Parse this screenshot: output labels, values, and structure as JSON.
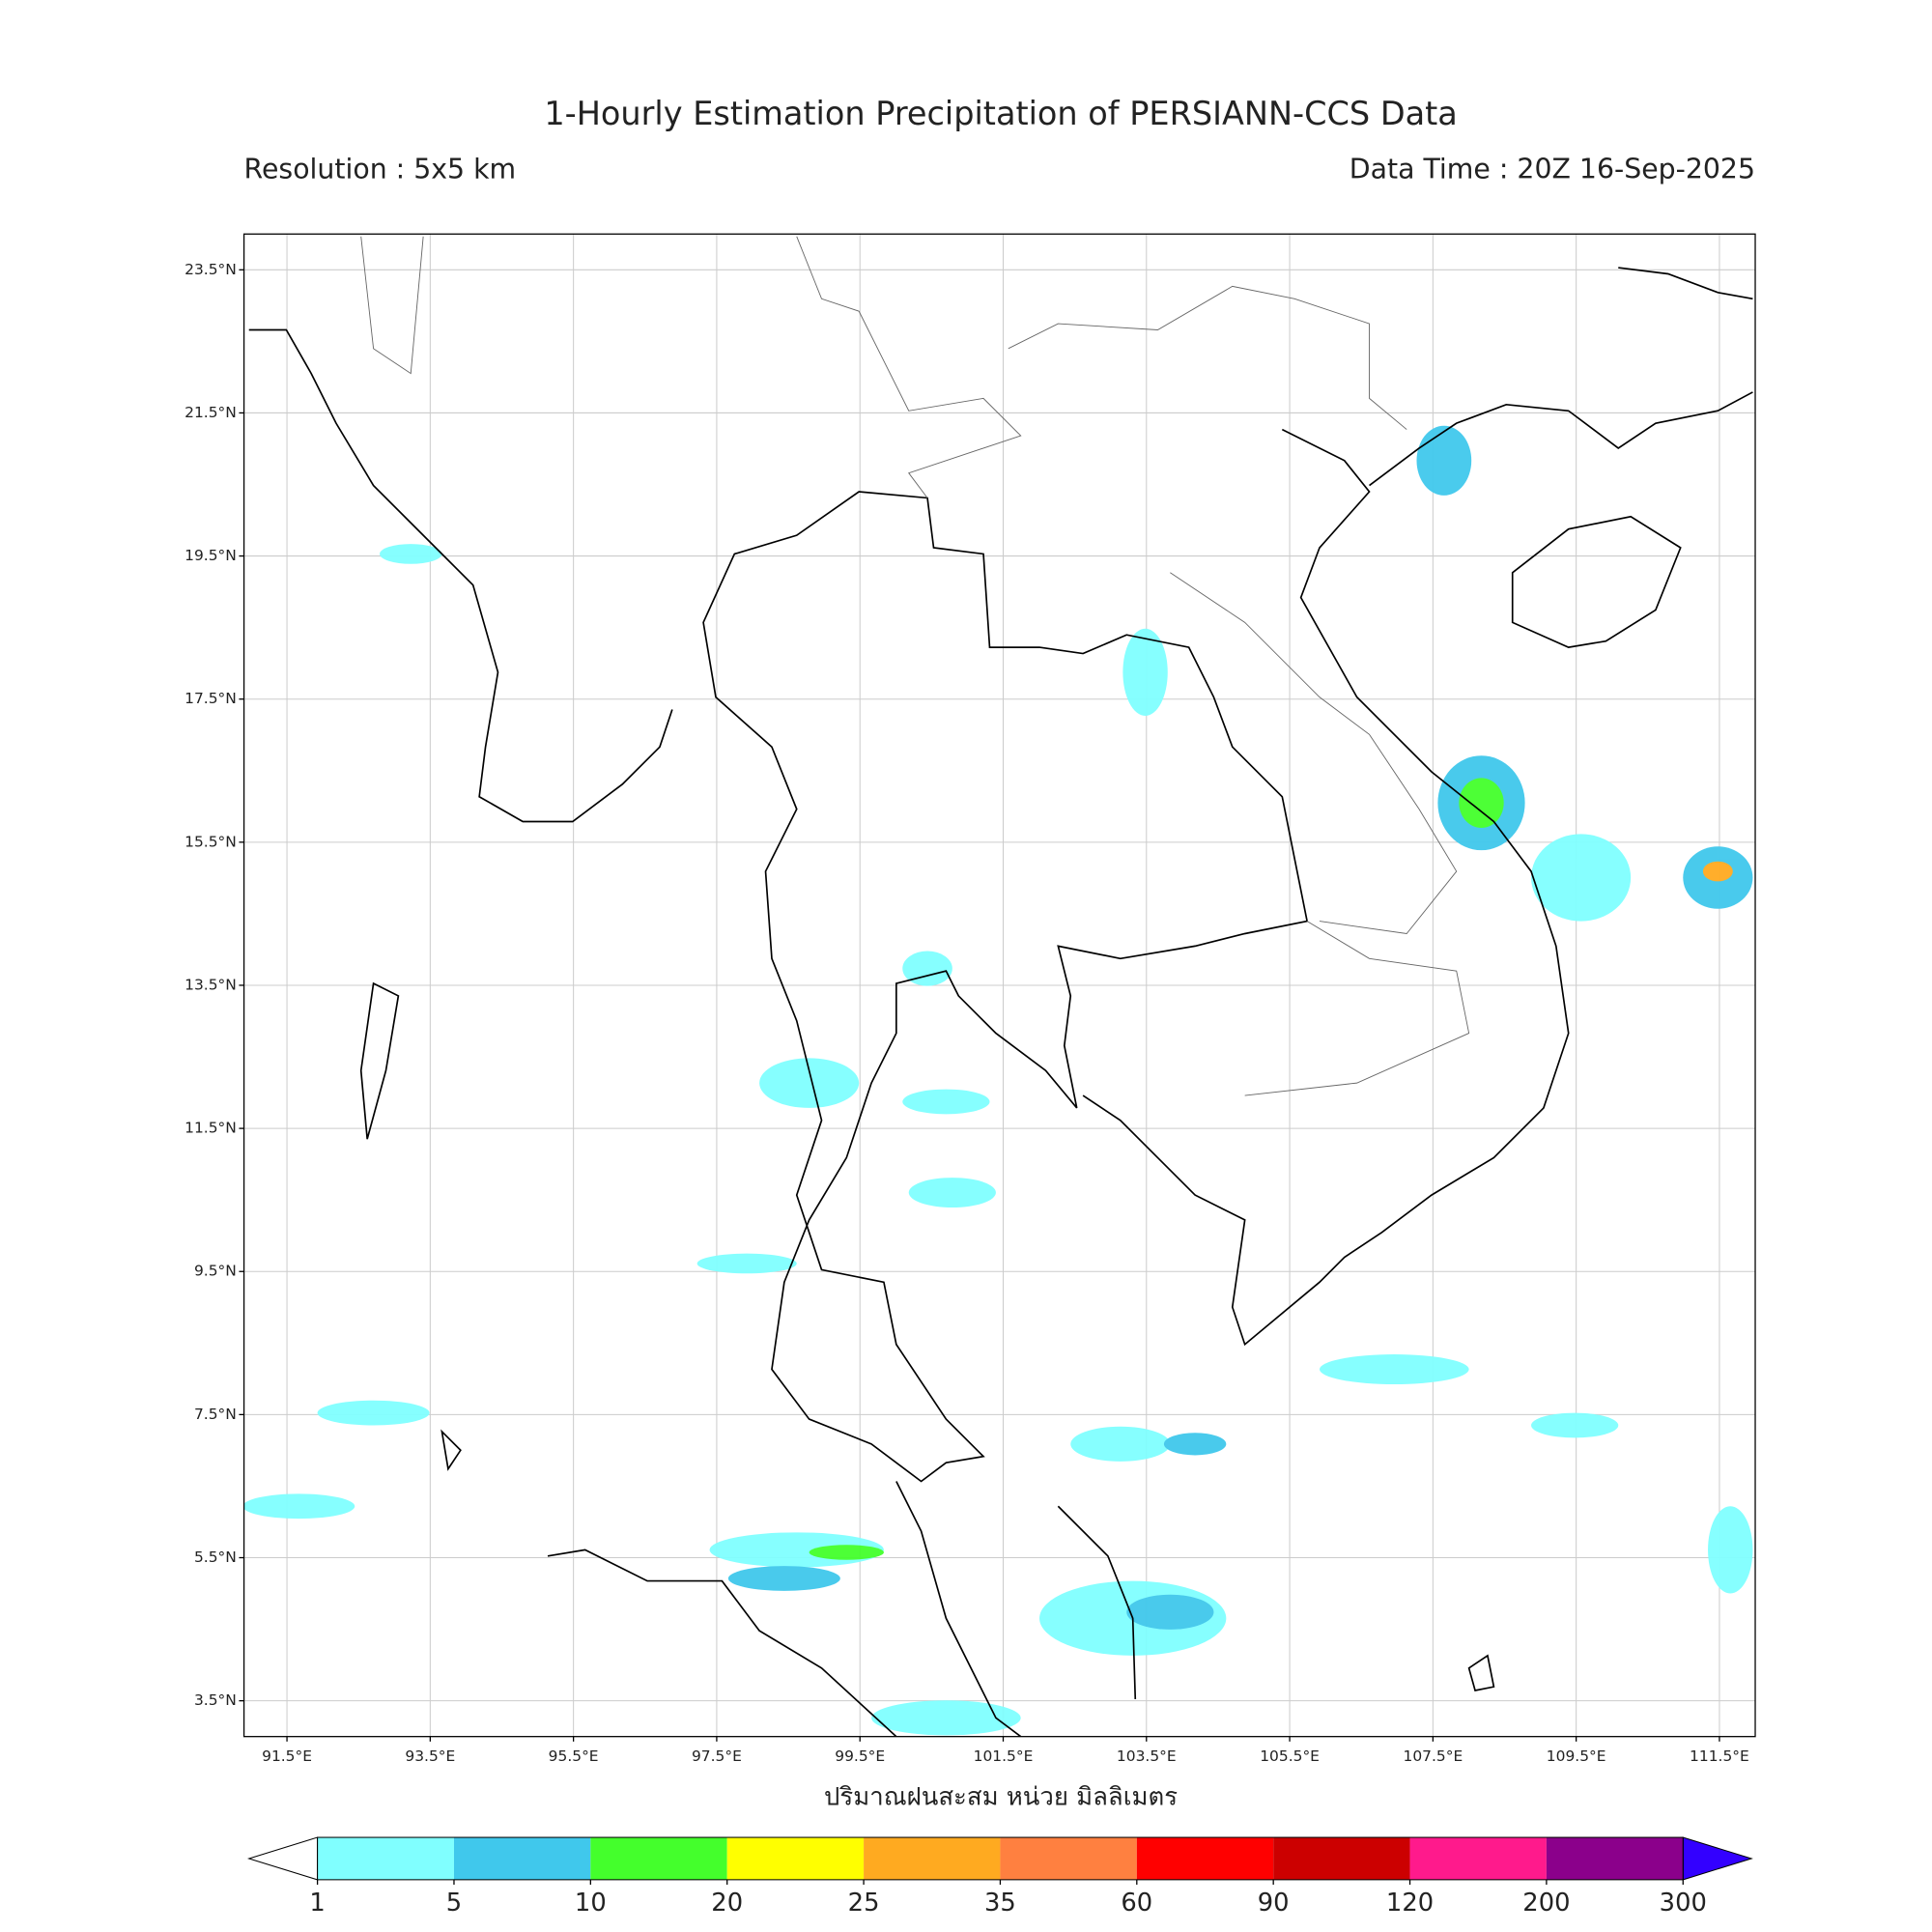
{
  "title": "1-Hourly Estimation Precipitation of PERSIANN-CCS Data",
  "subtitle_left": "Resolution : 5x5 km",
  "subtitle_right": "Data Time : 20Z 16-Sep-2025",
  "map": {
    "xlim": [
      90.9,
      112.0
    ],
    "ylim": [
      3.0,
      24.0
    ],
    "xticks": [
      {
        "value": 91.5,
        "label": "91.5°E"
      },
      {
        "value": 93.5,
        "label": "93.5°E"
      },
      {
        "value": 95.5,
        "label": "95.5°E"
      },
      {
        "value": 97.5,
        "label": "97.5°E"
      },
      {
        "value": 99.5,
        "label": "99.5°E"
      },
      {
        "value": 101.5,
        "label": "101.5°E"
      },
      {
        "value": 103.5,
        "label": "103.5°E"
      },
      {
        "value": 105.5,
        "label": "105.5°E"
      },
      {
        "value": 107.5,
        "label": "107.5°E"
      },
      {
        "value": 109.5,
        "label": "109.5°E"
      },
      {
        "value": 111.5,
        "label": "111.5°E"
      }
    ],
    "yticks": [
      {
        "value": 3.5,
        "label": "3.5°N"
      },
      {
        "value": 5.5,
        "label": "5.5°N"
      },
      {
        "value": 7.5,
        "label": "7.5°N"
      },
      {
        "value": 9.5,
        "label": "9.5°N"
      },
      {
        "value": 11.5,
        "label": "11.5°N"
      },
      {
        "value": 13.5,
        "label": "13.5°N"
      },
      {
        "value": 15.5,
        "label": "15.5°N"
      },
      {
        "value": 17.5,
        "label": "17.5°N"
      },
      {
        "value": 19.5,
        "label": "19.5°N"
      },
      {
        "value": 21.5,
        "label": "21.5°N"
      },
      {
        "value": 23.5,
        "label": "23.5°N"
      }
    ],
    "grid": true
  },
  "colorbar": {
    "label": "ปริมาณฝนสะสม หน่วย มิลลิเมตร",
    "boundaries": [
      1,
      5,
      10,
      20,
      25,
      35,
      60,
      90,
      120,
      200,
      300
    ],
    "colors": [
      "#80ffff",
      "#40c8ec",
      "#44ff2c",
      "#ffff00",
      "#ffaa20",
      "#ff8040",
      "#ff0000",
      "#cc0000",
      "#ff1a8c",
      "#8b008b"
    ],
    "under_color": "#ffffff",
    "over_color": "#3300ff"
  }
}
